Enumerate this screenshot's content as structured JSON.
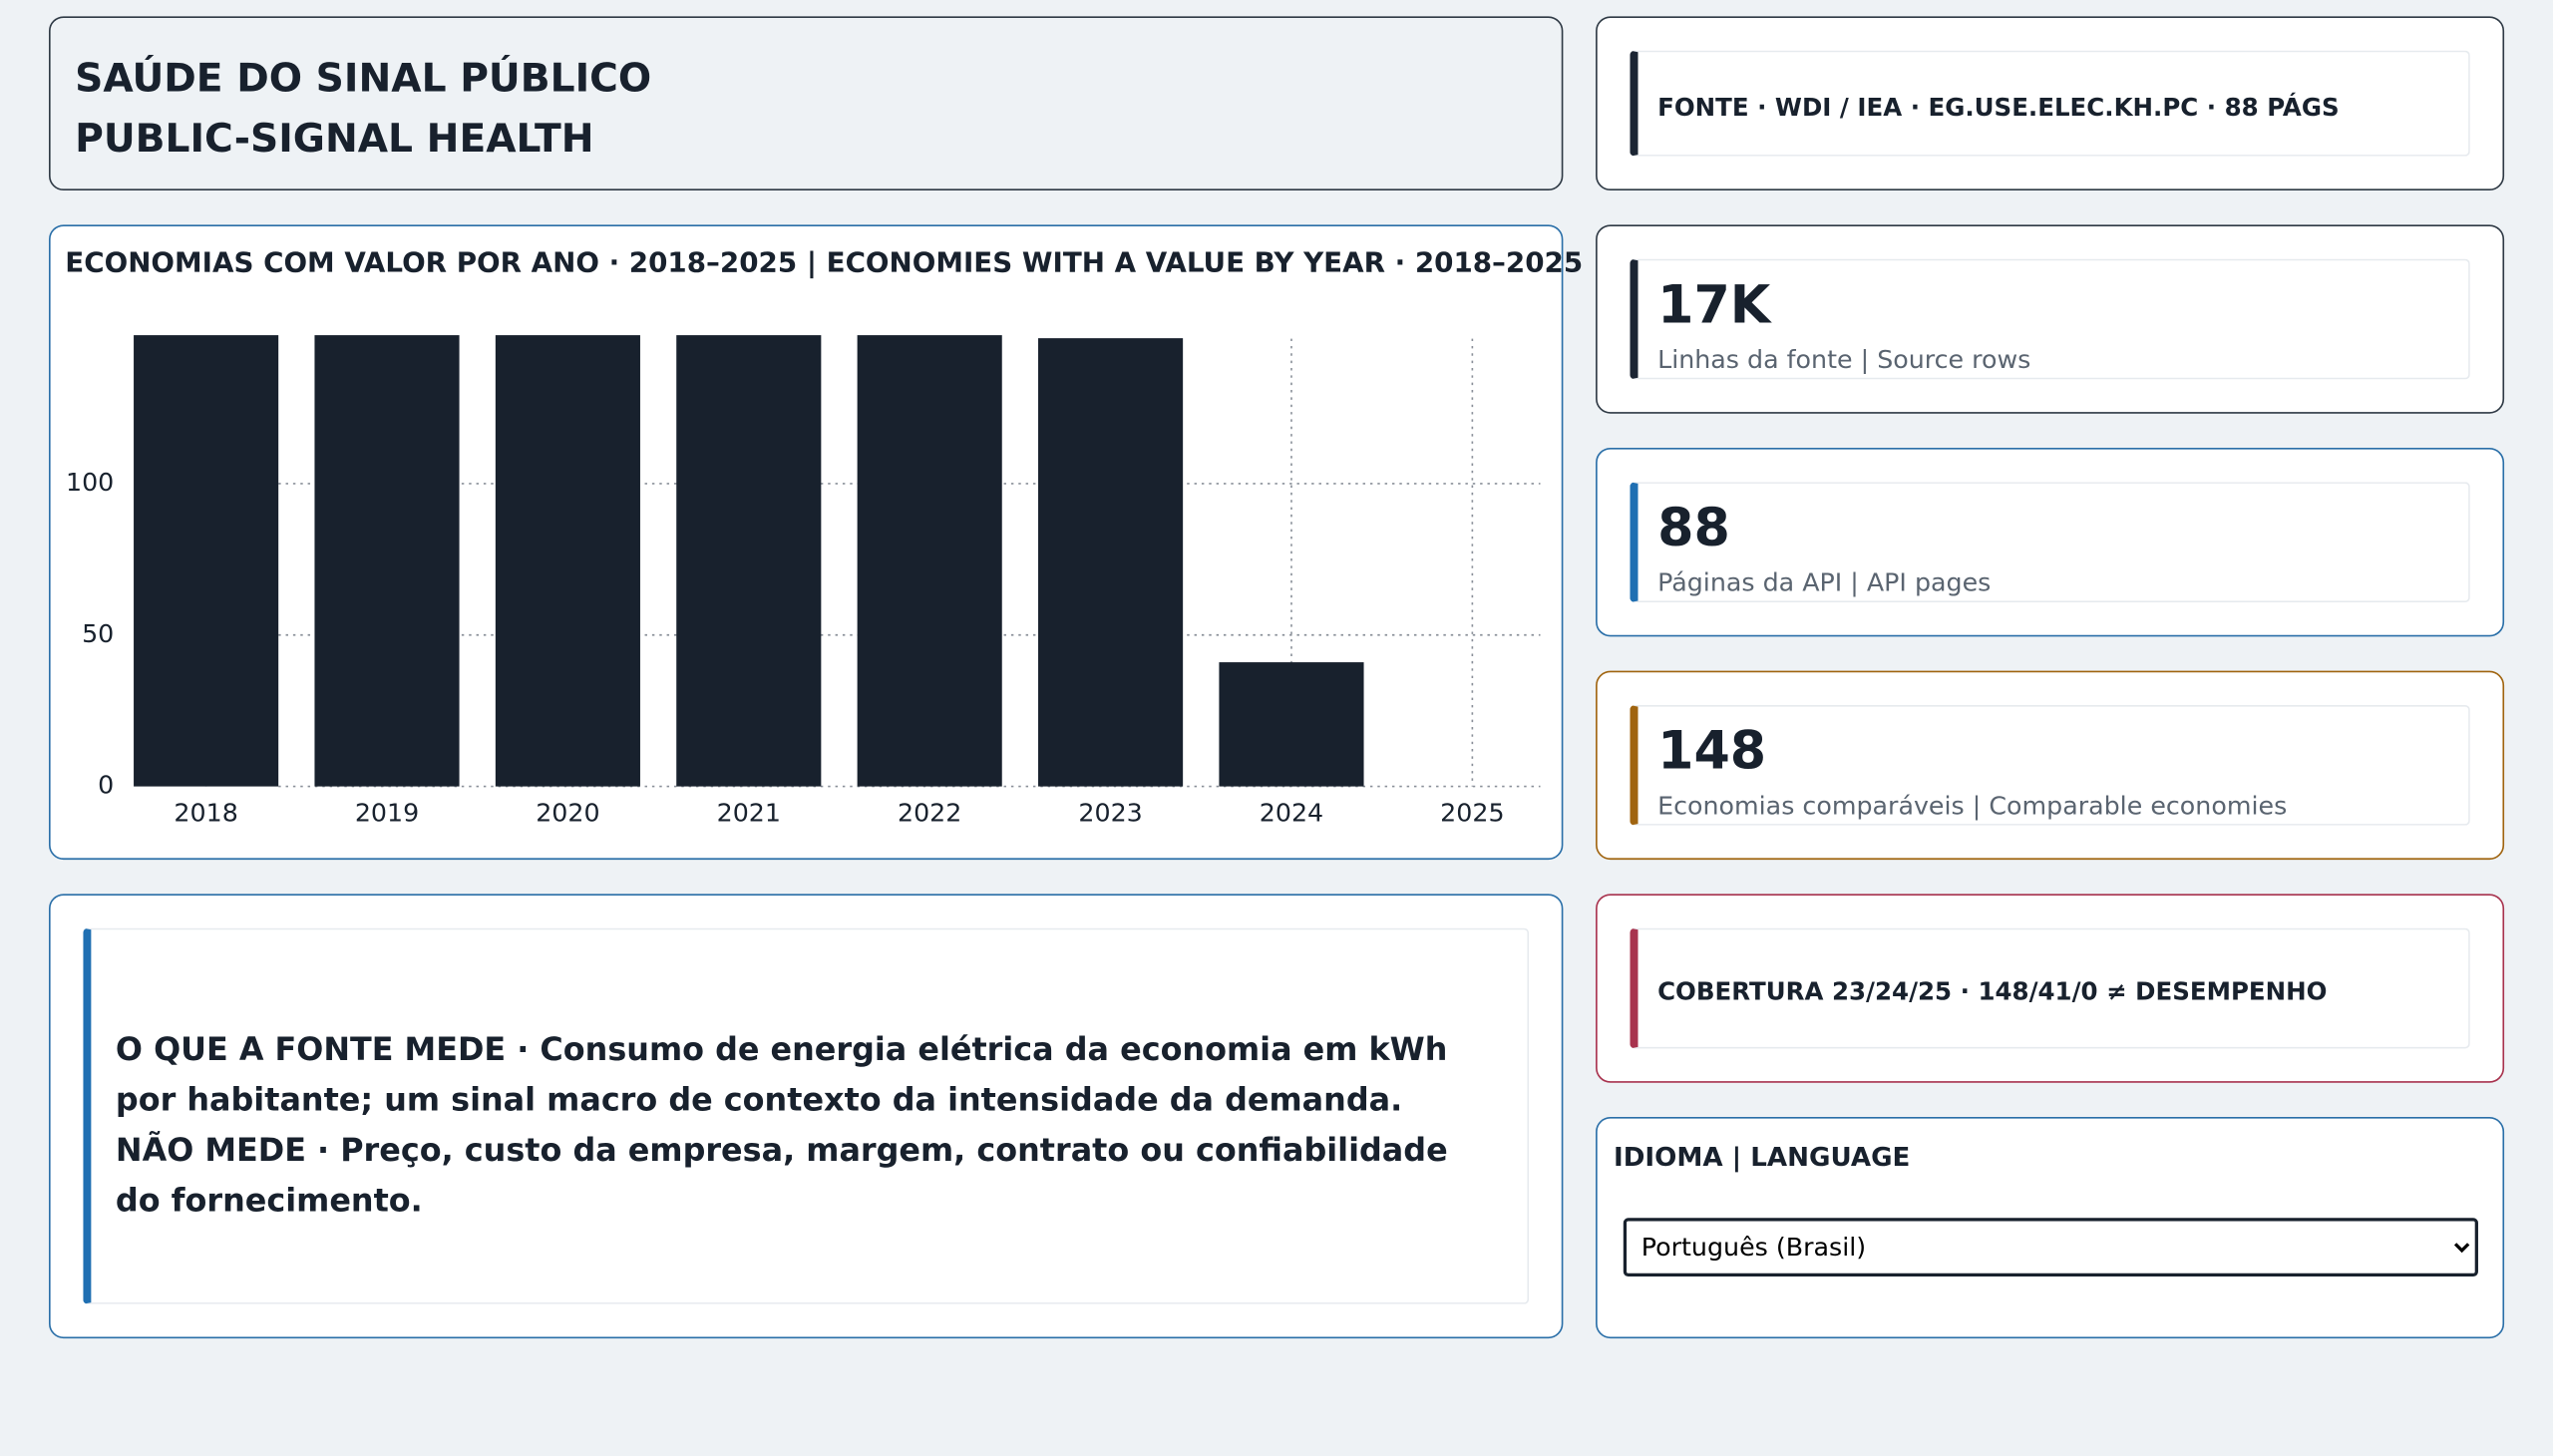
{
  "header": {
    "title_pt": "SAÚDE DO SINAL PÚBLICO",
    "title_en": "PUBLIC-SIGNAL HEALTH"
  },
  "source": {
    "text": "FONTE · WDI / IEA · EG.USE.ELEC.KH.PC · 88 PÁGS"
  },
  "kpis": [
    {
      "value": "17K",
      "label": "Linhas da fonte | Source rows"
    },
    {
      "value": 88,
      "label": "Páginas da API | API pages"
    },
    {
      "value": 148,
      "label": "Economias comparáveis | Comparable economies"
    }
  ],
  "coverage": {
    "text": "COBERTURA 23/24/25 · 148/41/0 ≠ DESEMPENHO"
  },
  "language": {
    "label": "IDIOMA | LANGUAGE",
    "selected": "Português (Brasil)"
  },
  "note": {
    "measures": "O QUE A FONTE MEDE · Consumo de energia elétrica da economia em kWh por habitante; um sinal macro de contexto da intensidade da demanda.",
    "not_measures": "NÃO MEDE · Preço, custo da empresa, margem, contrato ou confiabilidade do fornecimento."
  },
  "chart_data": {
    "type": "bar",
    "title": "ECONOMIAS COM VALOR POR ANO · 2018–2025 | ECONOMIES WITH A VALUE BY YEAR · 2018–2025",
    "categories": [
      "2018",
      "2019",
      "2020",
      "2021",
      "2022",
      "2023",
      "2024",
      "2025"
    ],
    "values": [
      149,
      149,
      149,
      149,
      149,
      148,
      41,
      0
    ],
    "color": "#18212d",
    "ylim": [
      0,
      150
    ],
    "yticks": [
      0,
      50,
      100
    ],
    "grid": true
  }
}
